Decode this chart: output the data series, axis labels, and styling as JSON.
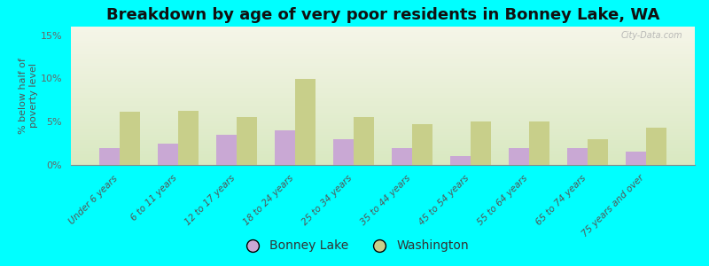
{
  "title": "Breakdown by age of very poor residents in Bonney Lake, WA",
  "ylabel": "% below half of\npoverty level",
  "categories": [
    "Under 6 years",
    "6 to 11 years",
    "12 to 17 years",
    "18 to 24 years",
    "25 to 34 years",
    "35 to 44 years",
    "45 to 54 years",
    "55 to 64 years",
    "65 to 74 years",
    "75 years and over"
  ],
  "bonney_lake": [
    2.0,
    2.5,
    3.5,
    4.0,
    3.0,
    2.0,
    1.0,
    2.0,
    2.0,
    1.5
  ],
  "washington": [
    6.2,
    6.3,
    5.5,
    10.0,
    5.5,
    4.7,
    5.0,
    5.0,
    3.0,
    4.3
  ],
  "bonney_lake_color": "#c9a8d4",
  "washington_color": "#c8cf8a",
  "background_color": "#00ffff",
  "plot_bg_top": "#f5f5e8",
  "plot_bg_bottom": "#d8e8c0",
  "ylim": [
    0,
    16
  ],
  "yticks": [
    0,
    5,
    10,
    15
  ],
  "ytick_labels": [
    "0%",
    "5%",
    "10%",
    "15%"
  ],
  "title_fontsize": 13,
  "ylabel_fontsize": 8,
  "legend_fontsize": 10,
  "watermark": "City-Data.com"
}
